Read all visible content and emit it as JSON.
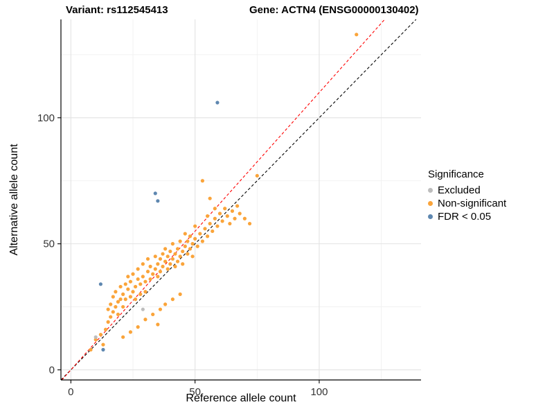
{
  "titles": {
    "left": "Variant: rs112545413",
    "right": "Gene: ACTN4 (ENSG00000130402)"
  },
  "axes": {
    "x_label": "Reference allele count",
    "y_label": "Alternative allele count",
    "x_ticks": [
      0,
      50,
      100
    ],
    "y_ticks": [
      0,
      50,
      100
    ],
    "x_minor": [
      25,
      75,
      125
    ],
    "y_minor": [
      25,
      75,
      125
    ]
  },
  "legend": {
    "title": "Significance",
    "items": [
      {
        "label": "Excluded",
        "color": "#BDBDBD"
      },
      {
        "label": "Non-significant",
        "color": "#FAA43A"
      },
      {
        "label": "FDR < 0.05",
        "color": "#5E87B0"
      }
    ]
  },
  "chart_data": {
    "type": "scatter",
    "title": "Variant: rs112545413 / Gene: ACTN4 (ENSG00000130402)",
    "xlabel": "Reference allele count",
    "ylabel": "Alternative allele count",
    "xlim": [
      -4,
      141
    ],
    "ylim": [
      -4,
      139
    ],
    "grid": true,
    "legend_position": "right",
    "series": [
      {
        "name": "Non-significant",
        "color": "#FAA43A",
        "points": [
          [
            8,
            8
          ],
          [
            10,
            12
          ],
          [
            12,
            14
          ],
          [
            13,
            10
          ],
          [
            14,
            16
          ],
          [
            15,
            24
          ],
          [
            15,
            19
          ],
          [
            16,
            26
          ],
          [
            16,
            21
          ],
          [
            17,
            23
          ],
          [
            17,
            29
          ],
          [
            18,
            25
          ],
          [
            18,
            31
          ],
          [
            19,
            27
          ],
          [
            19,
            22
          ],
          [
            20,
            33
          ],
          [
            20,
            28
          ],
          [
            21,
            30
          ],
          [
            21,
            25
          ],
          [
            21,
            13
          ],
          [
            22,
            34
          ],
          [
            22,
            28
          ],
          [
            23,
            32
          ],
          [
            23,
            37
          ],
          [
            24,
            29
          ],
          [
            24,
            35
          ],
          [
            24,
            15
          ],
          [
            25,
            31
          ],
          [
            25,
            38
          ],
          [
            26,
            33
          ],
          [
            26,
            28
          ],
          [
            27,
            36
          ],
          [
            27,
            40
          ],
          [
            27,
            17
          ],
          [
            28,
            34
          ],
          [
            28,
            30
          ],
          [
            29,
            37
          ],
          [
            29,
            42
          ],
          [
            30,
            35
          ],
          [
            30,
            31
          ],
          [
            30,
            20
          ],
          [
            31,
            39
          ],
          [
            31,
            44
          ],
          [
            32,
            36
          ],
          [
            32,
            41
          ],
          [
            33,
            38
          ],
          [
            33,
            22
          ],
          [
            34,
            40
          ],
          [
            34,
            45
          ],
          [
            35,
            37
          ],
          [
            35,
            42
          ],
          [
            35,
            18
          ],
          [
            36,
            44
          ],
          [
            36,
            39
          ],
          [
            36,
            24
          ],
          [
            37,
            41
          ],
          [
            37,
            46
          ],
          [
            38,
            43
          ],
          [
            38,
            48
          ],
          [
            38,
            26
          ],
          [
            39,
            40
          ],
          [
            39,
            45
          ],
          [
            40,
            42
          ],
          [
            40,
            47
          ],
          [
            41,
            44
          ],
          [
            41,
            50
          ],
          [
            41,
            28
          ],
          [
            42,
            46
          ],
          [
            42,
            41
          ],
          [
            43,
            48
          ],
          [
            43,
            43
          ],
          [
            44,
            45
          ],
          [
            44,
            51
          ],
          [
            44,
            30
          ],
          [
            45,
            47
          ],
          [
            45,
            42
          ],
          [
            46,
            49
          ],
          [
            46,
            54
          ],
          [
            47,
            46
          ],
          [
            47,
            51
          ],
          [
            48,
            48
          ],
          [
            48,
            53
          ],
          [
            49,
            50
          ],
          [
            49,
            45
          ],
          [
            50,
            52
          ],
          [
            50,
            57
          ],
          [
            51,
            49
          ],
          [
            52,
            54
          ],
          [
            53,
            51
          ],
          [
            53,
            75
          ],
          [
            54,
            56
          ],
          [
            55,
            53
          ],
          [
            55,
            61
          ],
          [
            56,
            58
          ],
          [
            56,
            68
          ],
          [
            57,
            55
          ],
          [
            58,
            60
          ],
          [
            58,
            64
          ],
          [
            59,
            57
          ],
          [
            60,
            62
          ],
          [
            61,
            59
          ],
          [
            62,
            64
          ],
          [
            63,
            61
          ],
          [
            64,
            58
          ],
          [
            65,
            63
          ],
          [
            66,
            60
          ],
          [
            67,
            65
          ],
          [
            68,
            62
          ],
          [
            70,
            60
          ],
          [
            72,
            58
          ],
          [
            75,
            77
          ],
          [
            115,
            133
          ]
        ]
      },
      {
        "name": "Excluded",
        "color": "#BDBDBD",
        "points": [
          [
            10,
            13
          ],
          [
            29,
            24
          ]
        ]
      },
      {
        "name": "FDR < 0.05",
        "color": "#5E87B0",
        "points": [
          [
            13,
            8
          ],
          [
            12,
            34
          ],
          [
            34,
            70
          ],
          [
            35,
            67
          ],
          [
            59,
            106
          ]
        ]
      }
    ],
    "lines": [
      {
        "name": "identity",
        "slope": 1,
        "intercept": 0,
        "color": "#000000",
        "dash": "4 3"
      },
      {
        "name": "expected-ratio",
        "slope": 1.1,
        "intercept": 0,
        "color": "#FF0000",
        "dash": "4 3"
      }
    ]
  }
}
